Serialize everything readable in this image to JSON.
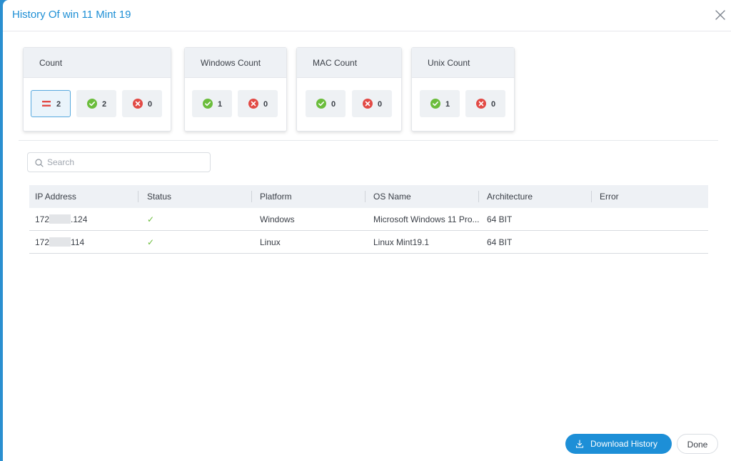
{
  "modal": {
    "title": "History Of win 11 Mint 19"
  },
  "cards": {
    "count": {
      "label": "Count",
      "total": "2",
      "success": "2",
      "failed": "0"
    },
    "windows": {
      "label": "Windows Count",
      "success": "1",
      "failed": "0"
    },
    "mac": {
      "label": "MAC Count",
      "success": "0",
      "failed": "0"
    },
    "unix": {
      "label": "Unix Count",
      "success": "1",
      "failed": "0"
    }
  },
  "search": {
    "placeholder": "Search",
    "value": ""
  },
  "table": {
    "columns": [
      "IP Address",
      "Status",
      "Platform",
      "OS Name",
      "Architecture",
      "Error"
    ],
    "rows": [
      {
        "ip_prefix": "172",
        "ip_suffix": ".124",
        "status": "✓",
        "platform": "Windows",
        "os_name": "Microsoft Windows 11 Pro...",
        "architecture": "64 BIT",
        "error": ""
      },
      {
        "ip_prefix": "172",
        "ip_suffix": "114",
        "status": "✓",
        "platform": "Linux",
        "os_name": "Linux Mint19.1",
        "architecture": "64 BIT",
        "error": ""
      }
    ]
  },
  "footer": {
    "download_label": "Download History",
    "done_label": "Done"
  },
  "colors": {
    "accent": "#1d8fd7",
    "success": "#6bbd3c",
    "danger": "#e24a45"
  },
  "icons": {
    "close": "close-icon",
    "search": "search-icon",
    "success": "check-circle-icon",
    "failed": "x-circle-icon",
    "total": "equals-icon",
    "download": "download-icon"
  }
}
